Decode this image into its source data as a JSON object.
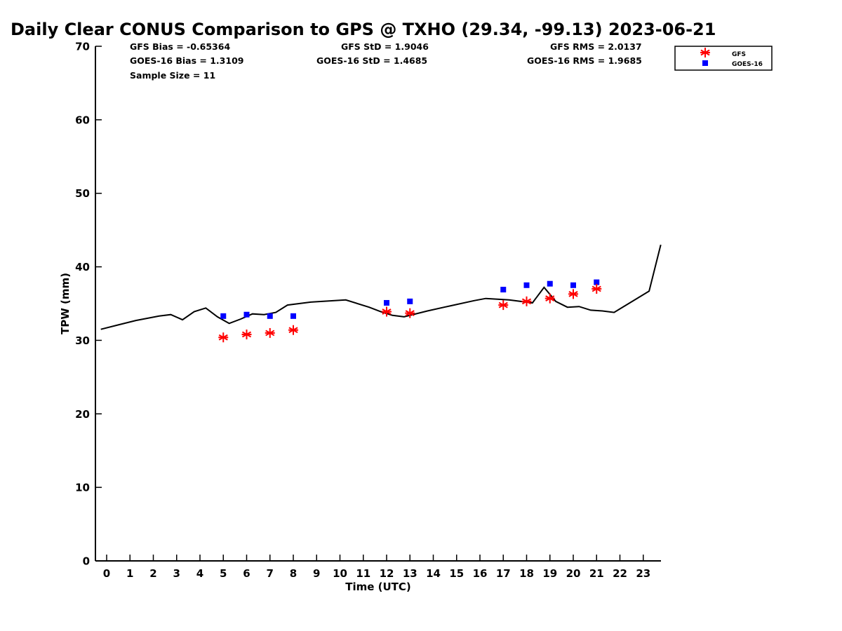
{
  "title": "Daily Clear CONUS Comparison to GPS @ TXHO (29.34, -99.13) 2023-06-21",
  "stats": {
    "gfs_bias": "GFS Bias = -0.65364",
    "goes_bias": "GOES-16 Bias = 1.3109",
    "sample_size": "Sample Size = 11",
    "gfs_std": "GFS StD = 1.9046",
    "goes_std": "GOES-16 StD = 1.4685",
    "gfs_rms": "GFS RMS = 2.0137",
    "goes_rms": "GOES-16 RMS = 1.9685"
  },
  "chart_data": {
    "type": "line",
    "title": "Daily Clear CONUS Comparison to GPS @ TXHO (29.34, -99.13) 2023-06-21",
    "xlabel": "Time (UTC)",
    "ylabel": "TPW (mm)",
    "xlim": [
      -0.5,
      23.75
    ],
    "ylim": [
      0,
      70
    ],
    "x_ticks": [
      0,
      1,
      2,
      3,
      4,
      5,
      6,
      7,
      8,
      9,
      10,
      11,
      12,
      13,
      14,
      15,
      16,
      17,
      18,
      19,
      20,
      21,
      22,
      23
    ],
    "y_ticks": [
      0,
      10,
      20,
      30,
      40,
      50,
      60,
      70
    ],
    "grid": false,
    "legend_position": "top-right",
    "colors": {
      "gps": "#000000",
      "gfs": "#ff0000",
      "goes": "#0000ff"
    },
    "series": [
      {
        "style": "line",
        "x": [
          -0.25,
          0.5,
          1.25,
          2.25,
          2.75,
          3.25,
          3.75,
          4.25,
          4.75,
          5.25,
          5.75,
          6.25,
          6.75,
          7.25,
          7.75,
          8.75,
          10.25,
          11.25,
          11.75,
          12.25,
          12.75,
          13.75,
          14.75,
          15.75,
          16.25,
          17.25,
          18.25,
          18.75,
          19.25,
          19.75,
          20.25,
          20.75,
          21.25,
          21.75,
          23.25,
          23.75
        ],
        "y": [
          31.5,
          32.1,
          32.7,
          33.3,
          33.5,
          32.8,
          33.9,
          34.4,
          33.2,
          32.3,
          32.9,
          33.6,
          33.5,
          33.8,
          34.8,
          35.2,
          35.5,
          34.5,
          33.9,
          33.4,
          33.2,
          34.0,
          34.7,
          35.4,
          35.7,
          35.5,
          35.1,
          37.2,
          35.3,
          34.5,
          34.6,
          34.1,
          34.0,
          33.8,
          36.7,
          43.0
        ]
      },
      {
        "name": "GFS",
        "style": "asterisk",
        "x": [
          5,
          6,
          7,
          8,
          12,
          13,
          17,
          18,
          19,
          20,
          21
        ],
        "y": [
          30.4,
          30.8,
          31.0,
          31.4,
          33.9,
          33.7,
          34.8,
          35.3,
          35.7,
          36.3,
          37.0
        ]
      },
      {
        "name": "GOES-16",
        "style": "square",
        "x": [
          5,
          6,
          7,
          8,
          12,
          13,
          17,
          18,
          19,
          20,
          21
        ],
        "y": [
          33.3,
          33.5,
          33.3,
          33.3,
          35.1,
          35.3,
          36.9,
          37.5,
          37.7,
          37.5,
          37.9
        ]
      }
    ]
  }
}
